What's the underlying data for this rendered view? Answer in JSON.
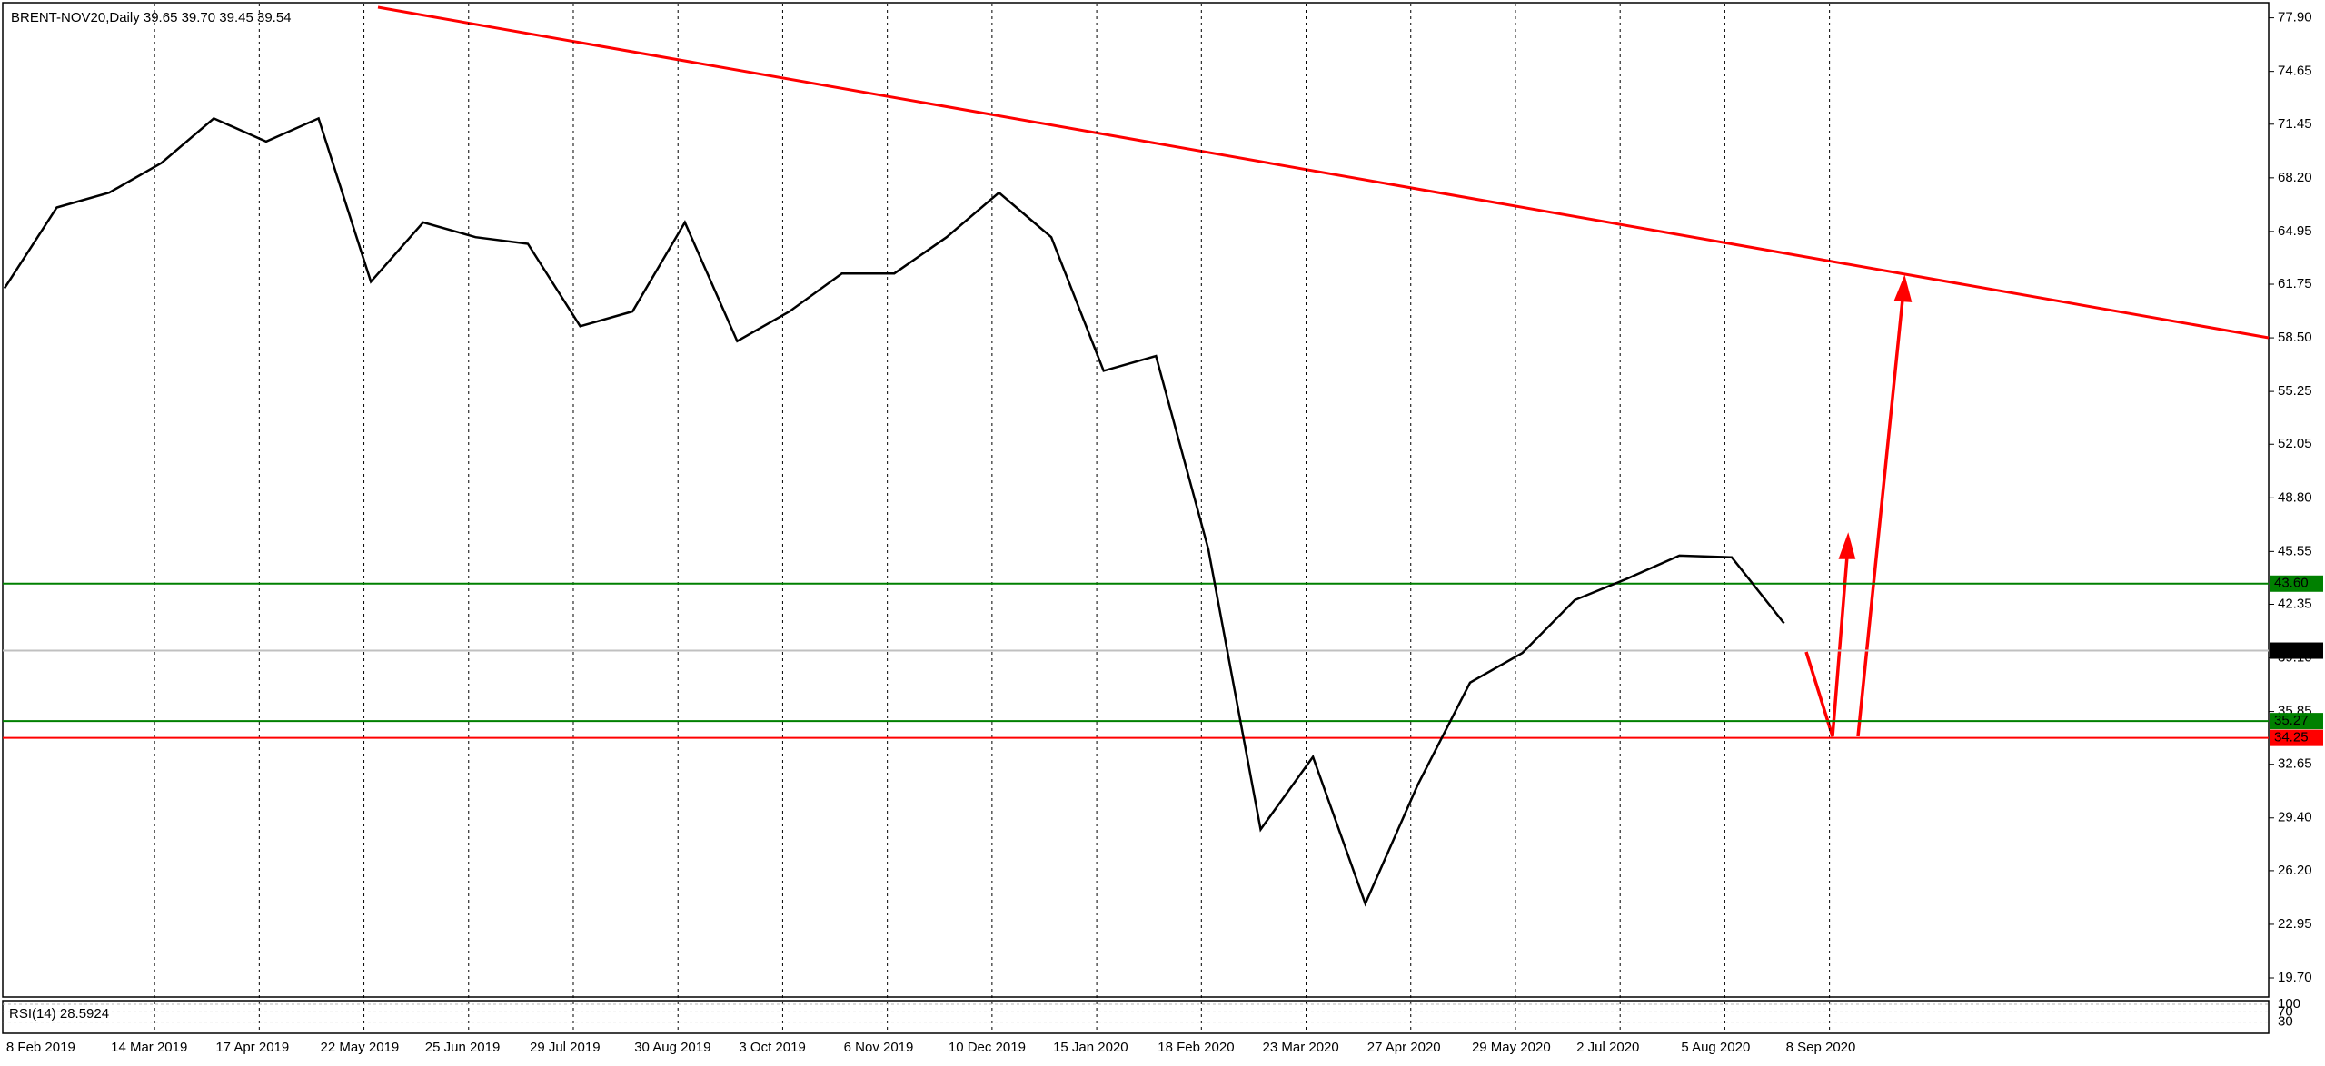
{
  "chart_data": {
    "type": "line",
    "title": "BRENT-NOV20,Daily  39.65 39.70 39.45 39.54",
    "categories": [
      "8 Feb 2019",
      null,
      "14 Mar 2019",
      null,
      "17 Apr 2019",
      null,
      "22 May 2019",
      null,
      "25 Jun 2019",
      null,
      "29 Jul 2019",
      null,
      "30 Aug 2019",
      null,
      "3 Oct 2019",
      null,
      "6 Nov 2019",
      null,
      "10 Dec 2019",
      null,
      "15 Jan 2020",
      null,
      "18 Feb 2020",
      null,
      "23 Mar 2020",
      null,
      "27 Apr 2020",
      null,
      "29 May 2020",
      null,
      "2 Jul 2020",
      null,
      "5 Aug 2020",
      null,
      "8 Sep 2020"
    ],
    "series": [
      {
        "name": "BRENT-NOV20",
        "color": "#000000",
        "values": [
          61.5,
          66.4,
          67.3,
          69.1,
          71.8,
          70.4,
          71.8,
          61.9,
          65.5,
          64.6,
          64.2,
          59.2,
          60.1,
          65.5,
          58.3,
          60.1,
          62.4,
          62.4,
          64.6,
          67.3,
          64.6,
          56.5,
          57.4,
          45.7,
          28.7,
          33.1,
          24.2,
          31.4,
          37.6,
          39.4,
          42.6,
          43.9,
          45.3,
          45.2,
          41.2
        ]
      }
    ],
    "ylim": [
      19.7,
      77.9
    ],
    "yticks": [
      {
        "value": 77.9,
        "label": "77.90"
      },
      74.65,
      71.45,
      {
        "value": 68.2,
        "label": "68.20"
      },
      64.95,
      61.75,
      {
        "value": 58.5,
        "label": "58.50"
      },
      55.25,
      52.05,
      {
        "value": 48.8,
        "label": "48.80"
      },
      45.55,
      42.35,
      {
        "value": 39.1,
        "label": "39.10"
      },
      35.85,
      32.65,
      {
        "value": 29.4,
        "label": "29.40"
      },
      {
        "value": 26.2,
        "label": "26.20"
      },
      22.95,
      {
        "value": 19.7,
        "label": "19.70"
      }
    ],
    "grid": true,
    "levels": [
      {
        "value": 43.6,
        "label": "43.60",
        "color": "#008000"
      },
      {
        "value": 35.27,
        "label": "35.27",
        "color": "#008000"
      },
      {
        "value": 34.25,
        "label": "34.25",
        "color": "#ff0000"
      },
      {
        "value": 39.54,
        "label": "39.54",
        "color": "#000000"
      }
    ],
    "rsi": {
      "label": "RSI(14) 28.5924",
      "ylim": [
        0,
        100
      ],
      "yticks": [
        100,
        70,
        30
      ]
    }
  }
}
